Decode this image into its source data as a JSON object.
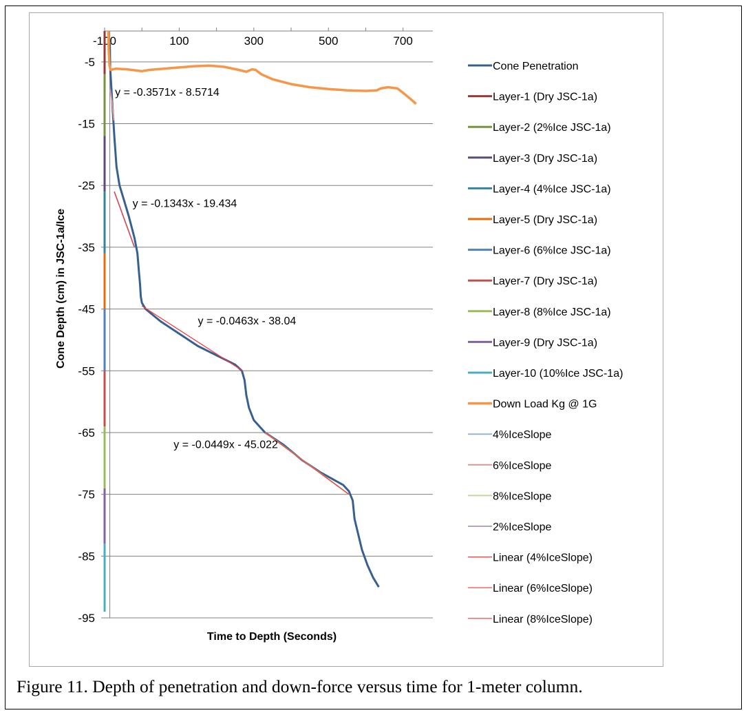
{
  "caption": "Figure 11. Depth of penetration and down-force versus time for 1-meter column.",
  "chart_data": {
    "type": "line",
    "xlabel": "Time to Depth (Seconds)",
    "ylabel": "Cone Depth (cm) in JSC-1a/Ice",
    "x_ticks": [
      -100,
      100,
      300,
      500,
      700
    ],
    "y_ticks": [
      -5,
      -15,
      -25,
      -35,
      -45,
      -55,
      -65,
      -75,
      -85,
      -95
    ],
    "xlim": [
      -100,
      780
    ],
    "ylim": [
      -95,
      0
    ],
    "grid": "horizontal",
    "legend_position": "right",
    "series": [
      {
        "name": "Cone Penetration",
        "color": "#376092",
        "width": 3,
        "points": [
          [
            -86,
            -2
          ],
          [
            -85,
            -6
          ],
          [
            -80,
            -11
          ],
          [
            -74,
            -17
          ],
          [
            -68,
            -22
          ],
          [
            -60,
            -25
          ],
          [
            -50,
            -27
          ],
          [
            -35,
            -30
          ],
          [
            -20,
            -33.5
          ],
          [
            -12,
            -36
          ],
          [
            -8,
            -39
          ],
          [
            -5,
            -41
          ],
          [
            -3,
            -43
          ],
          [
            0,
            -44
          ],
          [
            10,
            -45
          ],
          [
            50,
            -47
          ],
          [
            150,
            -51
          ],
          [
            250,
            -54
          ],
          [
            268,
            -55
          ],
          [
            275,
            -56.5
          ],
          [
            280,
            -59
          ],
          [
            287,
            -61
          ],
          [
            300,
            -63
          ],
          [
            330,
            -65
          ],
          [
            380,
            -67
          ],
          [
            430,
            -69.5
          ],
          [
            480,
            -71.5
          ],
          [
            540,
            -73.5
          ],
          [
            555,
            -74.5
          ],
          [
            565,
            -76
          ],
          [
            570,
            -79
          ],
          [
            580,
            -81.5
          ],
          [
            590,
            -84
          ],
          [
            605,
            -86.5
          ],
          [
            620,
            -88.5
          ],
          [
            635,
            -90
          ]
        ]
      },
      {
        "name": "Layer-1 (Dry JSC-1a)",
        "color": "#953735",
        "width": 3,
        "points": [
          [
            -100,
            0
          ],
          [
            -100,
            -7
          ]
        ]
      },
      {
        "name": "Layer-2 (2%Ice JSC-1a)",
        "color": "#77933c",
        "width": 3,
        "points": [
          [
            -100,
            -7
          ],
          [
            -100,
            -17
          ]
        ]
      },
      {
        "name": "Layer-3 (Dry JSC-1a)",
        "color": "#5f497a",
        "width": 3,
        "points": [
          [
            -100,
            -17
          ],
          [
            -100,
            -26
          ]
        ]
      },
      {
        "name": "Layer-4 (4%Ice JSC-1a)",
        "color": "#31859c",
        "width": 3,
        "points": [
          [
            -100,
            -26
          ],
          [
            -100,
            -36
          ]
        ]
      },
      {
        "name": "Layer-5 (Dry JSC-1a)",
        "color": "#e46c0a",
        "width": 3,
        "points": [
          [
            -100,
            -36
          ],
          [
            -100,
            -45
          ]
        ]
      },
      {
        "name": "Layer-6 (6%Ice JSC-1a)",
        "color": "#4f81bd",
        "width": 3,
        "points": [
          [
            -100,
            -45
          ],
          [
            -100,
            -55
          ]
        ]
      },
      {
        "name": "Layer-7 (Dry JSC-1a)",
        "color": "#c0504d",
        "width": 3,
        "points": [
          [
            -100,
            -55
          ],
          [
            -100,
            -64
          ]
        ]
      },
      {
        "name": "Layer-8 (8%Ice JSC-1a)",
        "color": "#9bbb59",
        "width": 3,
        "points": [
          [
            -100,
            -64
          ],
          [
            -100,
            -74
          ]
        ]
      },
      {
        "name": "Layer-9 (Dry JSC-1a)",
        "color": "#8064a2",
        "width": 3,
        "points": [
          [
            -100,
            -74
          ],
          [
            -100,
            -83
          ]
        ]
      },
      {
        "name": "Layer-10 (10%Ice JSC-1a)",
        "color": "#4bacc6",
        "width": 3,
        "points": [
          [
            -100,
            -83
          ],
          [
            -100,
            -94
          ]
        ]
      },
      {
        "name": "Down Load Kg @ 1G",
        "color": "#f79646",
        "width": 3.5,
        "points": [
          [
            -90,
            0
          ],
          [
            -89,
            -3
          ],
          [
            -87,
            -5.5
          ],
          [
            -84,
            -6.3
          ],
          [
            -70,
            -6.1
          ],
          [
            -40,
            -6.2
          ],
          [
            0,
            -6.5
          ],
          [
            20,
            -6.3
          ],
          [
            80,
            -6.0
          ],
          [
            140,
            -5.7
          ],
          [
            180,
            -5.6
          ],
          [
            220,
            -5.8
          ],
          [
            260,
            -6.3
          ],
          [
            280,
            -6.6
          ],
          [
            295,
            -6.2
          ],
          [
            305,
            -6.3
          ],
          [
            320,
            -7.0
          ],
          [
            350,
            -7.8
          ],
          [
            400,
            -8.6
          ],
          [
            450,
            -9.1
          ],
          [
            500,
            -9.4
          ],
          [
            550,
            -9.6
          ],
          [
            600,
            -9.7
          ],
          [
            630,
            -9.6
          ],
          [
            640,
            -9.3
          ],
          [
            660,
            -9.1
          ],
          [
            685,
            -9.3
          ],
          [
            700,
            -10.0
          ],
          [
            720,
            -11.0
          ],
          [
            735,
            -11.8
          ]
        ]
      },
      {
        "name": "4%IceSlope",
        "color": "#95b3d7",
        "width": 2,
        "points": [
          [
            -74,
            -26
          ],
          [
            -20,
            -35
          ]
        ]
      },
      {
        "name": "6%IceSlope",
        "color": "#d99694",
        "width": 2,
        "points": [
          [
            -85,
            -9.5
          ],
          [
            -80,
            -11.5
          ],
          [
            -75,
            -14.5
          ]
        ]
      },
      {
        "name": "8%IceSlope",
        "color": "#c3d69b",
        "width": 2,
        "points": [
          [
            330,
            -65
          ],
          [
            555,
            -75
          ]
        ]
      },
      {
        "name": "2%IceSlope",
        "color": "#b3a2c7",
        "width": 2,
        "points": []
      },
      {
        "name": "Linear (4%IceSlope)",
        "color": "#ff3333",
        "width": 1.2,
        "points": [
          [
            -74,
            -26
          ],
          [
            -20,
            -35
          ]
        ]
      },
      {
        "name": "Linear (6%IceSlope)",
        "color": "#ff3333",
        "width": 1.2,
        "points": [
          [
            0,
            -44.5
          ],
          [
            270,
            -55
          ]
        ]
      },
      {
        "name": "Linear (8%IceSlope)",
        "color": "#ff3333",
        "width": 1.2,
        "points": [
          [
            330,
            -65
          ],
          [
            555,
            -75
          ]
        ]
      }
    ],
    "annotations": [
      {
        "text": "y = -0.3571x - 8.5714",
        "x": -72,
        "y": -10.5
      },
      {
        "text": "y = -0.1343x - 19.434",
        "x": -25,
        "y": -28.5
      },
      {
        "text": "y = -0.0463x - 38.04",
        "x": 150,
        "y": -47.5
      },
      {
        "text": "y = -0.0449x - 45.022",
        "x": 85,
        "y": -67.5
      }
    ]
  }
}
